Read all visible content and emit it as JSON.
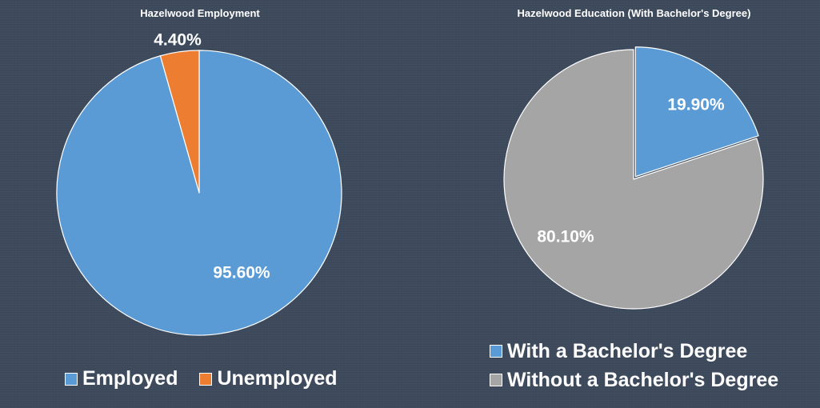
{
  "chart_data": [
    {
      "type": "pie",
      "title": "Hazelwood Employment",
      "categories": [
        "Employed",
        "Unemployed"
      ],
      "values": [
        95.6,
        4.4
      ],
      "labels": [
        "95.60%",
        "4.40%"
      ],
      "colors": [
        "#5b9bd5",
        "#ed7d31"
      ],
      "legend_position": "bottom"
    },
    {
      "type": "pie",
      "title": "Hazelwood Education (With Bachelor's Degree)",
      "categories": [
        "With a Bachelor's Degree",
        "Without a Bachelor's Degree"
      ],
      "values": [
        19.9,
        80.1
      ],
      "labels": [
        "19.90%",
        "80.10%"
      ],
      "colors": [
        "#5b9bd5",
        "#a5a5a5"
      ],
      "legend_position": "bottom"
    }
  ],
  "background_color": "#3d4a5c"
}
